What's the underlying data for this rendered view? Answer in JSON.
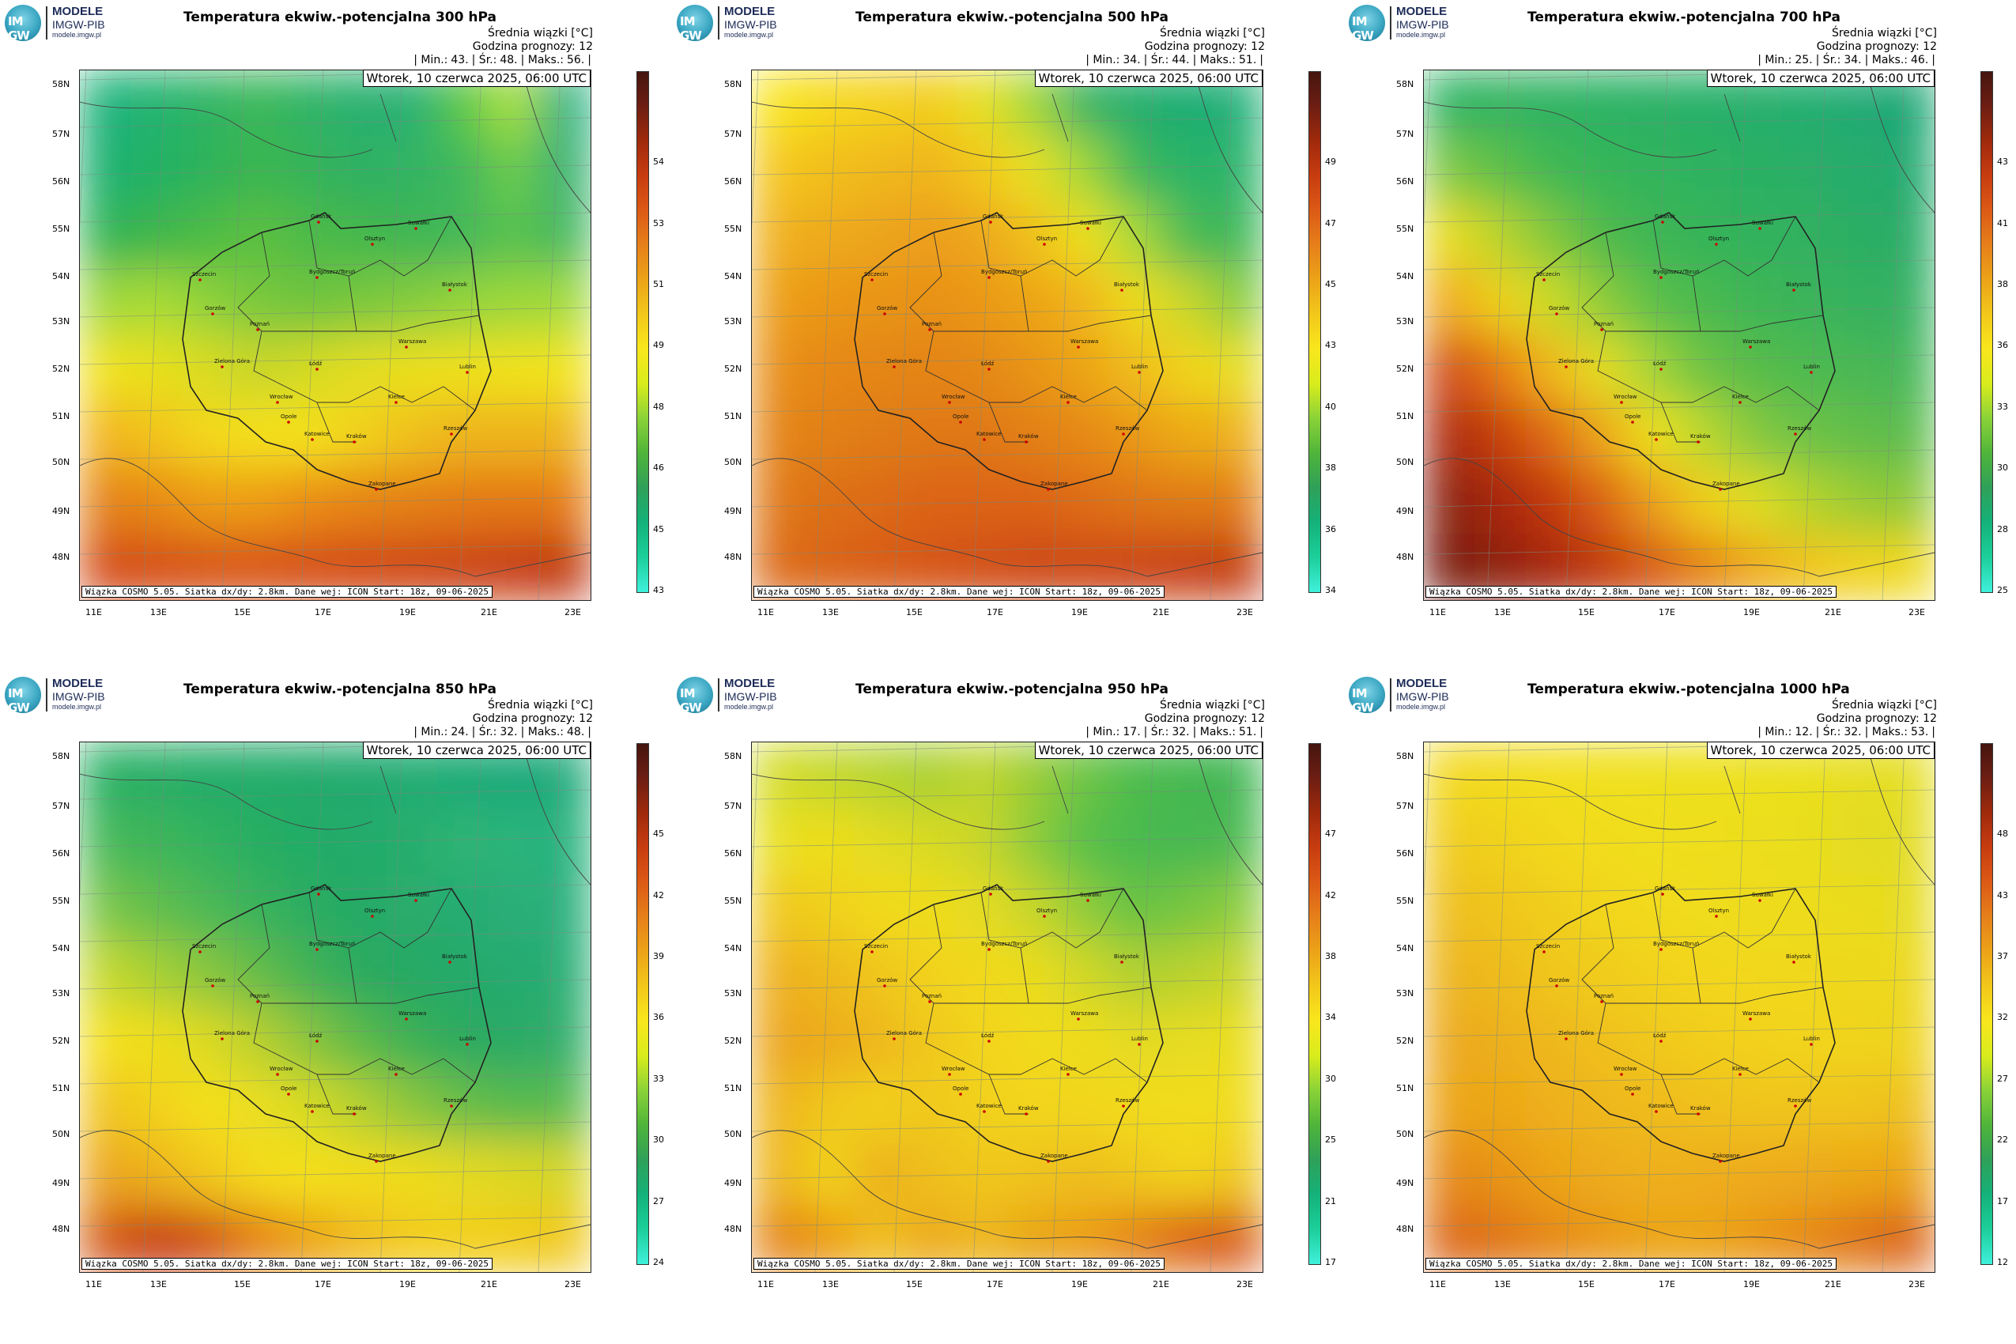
{
  "logo": {
    "mark": "IM GW",
    "line1": "MODELE",
    "line2": "IMGW-PIB",
    "line3": "modele.imgw.pl"
  },
  "common": {
    "subtitle": "Średnia wiązki [°C]",
    "forecast_hour": "Godzina prognozy: 12",
    "min_label": "| Min.:",
    "avg_label": "| Śr.:",
    "max_label": "| Maks.:",
    "date": "Wtorek, 10 czerwca 2025, 06:00 UTC",
    "footer": "Wiązka COSMO 5.05. Siatka dx/dy: 2.8km. Dane wej: ICON Start: 18z, 09-06-2025",
    "lat_labels": [
      "58N",
      "57N",
      "56N",
      "55N",
      "54N",
      "53N",
      "52N",
      "51N",
      "50N",
      "49N",
      "48N"
    ],
    "lon_labels": [
      "11E",
      "13E",
      "15E",
      "17E",
      "19E",
      "21E",
      "23E"
    ]
  },
  "colors": {
    "scale": [
      "#40f0dc",
      "#1ccf9a",
      "#14b27a",
      "#2fa05a",
      "#4fb43a",
      "#8ad238",
      "#d8ec1c",
      "#f8e71c",
      "#f2c81a",
      "#eca418",
      "#e6801a",
      "#dc5a16",
      "#c83c10",
      "#a02a0c",
      "#6e1e12",
      "#451510"
    ]
  },
  "panels": [
    {
      "title": "Temperatura ekwiw.-potencjalna 300 hPa",
      "min": "43.",
      "avg": "48.",
      "max": "56.",
      "cbar": [
        "43",
        "45",
        "46",
        "48",
        "49",
        "51",
        "53",
        "54"
      ],
      "field": [
        [
          "#1cb27c",
          "#24b470",
          "#2fb464",
          "#3ab858",
          "#2eb466",
          "#2bb070",
          "#27b074",
          "#5ac84a",
          "#a8e040",
          "#20b080"
        ],
        [
          "#1cb070",
          "#22b264",
          "#2eb25a",
          "#3ab650",
          "#35b45a",
          "#2fb062",
          "#33b464",
          "#40b85c",
          "#6ccc4c",
          "#34b070"
        ],
        [
          "#2fb454",
          "#3cb64c",
          "#4cbc44",
          "#5cc040",
          "#4cba48",
          "#44b84c",
          "#3cb652",
          "#44b85a",
          "#58c24e",
          "#44b860"
        ],
        [
          "#9ed83a",
          "#a8dc36",
          "#8ed23a",
          "#78c83e",
          "#6ec43e",
          "#78c83c",
          "#84cc3c",
          "#92d43a",
          "#9cd83a",
          "#a0da3a"
        ],
        [
          "#f0e21c",
          "#e8e01e",
          "#d8dc24",
          "#c8d62a",
          "#d4da24",
          "#e2de20",
          "#eadf1e",
          "#eee01c",
          "#f0e21c",
          "#f2e41c"
        ],
        [
          "#f2b41a",
          "#f2c41a",
          "#f4d81c",
          "#f4e01c",
          "#f4e01c",
          "#f2d01c",
          "#f0c01a",
          "#eeb41a",
          "#eeb41a",
          "#eeb41a"
        ],
        [
          "#e48018",
          "#e88a18",
          "#ec9c18",
          "#ee9c18",
          "#ea8c18",
          "#e68418",
          "#e48018",
          "#e47a18",
          "#e47818",
          "#e67c18"
        ],
        [
          "#d44c14",
          "#d65014",
          "#d85414",
          "#d85414",
          "#d65014",
          "#d44c14",
          "#d04a14",
          "#cc4412",
          "#c83c12",
          "#c03810"
        ]
      ]
    },
    {
      "title": "Temperatura ekwiw.-potencjalna 500 hPa",
      "min": "34.",
      "avg": "44.",
      "max": "51.",
      "cbar": [
        "34",
        "36",
        "38",
        "40",
        "43",
        "45",
        "47",
        "49"
      ],
      "field": [
        [
          "#f8e41c",
          "#f6d81c",
          "#f4d21c",
          "#f2cc1a",
          "#e8e020",
          "#9ed83a",
          "#34b464",
          "#22ae6c",
          "#1eac72",
          "#24b078"
        ],
        [
          "#f4c61a",
          "#f2be1a",
          "#f0b81a",
          "#f0b41a",
          "#f2c81a",
          "#e8e020",
          "#a0d838",
          "#3cb85a",
          "#2cb466",
          "#2cb46a"
        ],
        [
          "#f0b01a",
          "#eeaa1a",
          "#eca41a",
          "#ec9e1a",
          "#eea81a",
          "#f0c01a",
          "#eee01c",
          "#a8da38",
          "#48ba54",
          "#3cb858"
        ],
        [
          "#ec9e18",
          "#ea9618",
          "#e89418",
          "#e89018",
          "#ea9818",
          "#eca418",
          "#f0b41a",
          "#eedc1c",
          "#c8d82a",
          "#86cc3c"
        ],
        [
          "#e88e18",
          "#e68818",
          "#e48618",
          "#e48418",
          "#e48818",
          "#e89418",
          "#eca418",
          "#f0bc1a",
          "#f2d41a",
          "#e6de20"
        ],
        [
          "#e48418",
          "#e28018",
          "#e07c18",
          "#e07818",
          "#e07818",
          "#e28018",
          "#e68818",
          "#ea9818",
          "#ecaa18",
          "#eeb01a"
        ],
        [
          "#e07818",
          "#de7018",
          "#dc6a16",
          "#dc6416",
          "#dc6416",
          "#dc6416",
          "#de6c16",
          "#e07416",
          "#e07a18",
          "#e27c18"
        ],
        [
          "#dc6a16",
          "#da6416",
          "#d85c16",
          "#d65414",
          "#d25014",
          "#ce4a12",
          "#ce4812",
          "#cc4412",
          "#c84012",
          "#c23a10"
        ]
      ]
    },
    {
      "title": "Temperatura ekwiw.-potencjalna 700 hPa",
      "min": "25.",
      "avg": "34.",
      "max": "46.",
      "cbar": [
        "25",
        "28",
        "30",
        "33",
        "36",
        "38",
        "41",
        "43"
      ],
      "field": [
        [
          "#2cb462",
          "#30b460",
          "#2eb262",
          "#2cb264",
          "#2ab066",
          "#28b068",
          "#26ae6c",
          "#24ae70",
          "#20aa74",
          "#1ca676"
        ],
        [
          "#7cc842",
          "#5cc048",
          "#40b852",
          "#34b658",
          "#30b45c",
          "#2eb260",
          "#2cb064",
          "#2aae68",
          "#26ac6c",
          "#24aa70"
        ],
        [
          "#e8dc1e",
          "#b8d42e",
          "#80c83e",
          "#50ba4c",
          "#3cb654",
          "#36b458",
          "#32b25c",
          "#30b060",
          "#2cae64",
          "#2aac68"
        ],
        [
          "#f0a81a",
          "#eed21c",
          "#cadc26",
          "#8ccc3a",
          "#5ac04a",
          "#48ba50",
          "#3eb656",
          "#3ab45a",
          "#36b25e",
          "#34b062"
        ],
        [
          "#d24c14",
          "#e87c18",
          "#f0b81a",
          "#e4de20",
          "#a0d438",
          "#6cc244",
          "#56bc4a",
          "#4eba50",
          "#48b854",
          "#44b658"
        ],
        [
          "#ae2c0e",
          "#c8400e",
          "#e06c16",
          "#eca61a",
          "#eee01c",
          "#b8d82e",
          "#84c840",
          "#6cc246",
          "#62be4a",
          "#5cbc4e"
        ],
        [
          "#8a2010",
          "#a8280e",
          "#c4380e",
          "#dc6016",
          "#eca01a",
          "#f0d01c",
          "#dede22",
          "#b6d42c",
          "#98cc36",
          "#8cc838"
        ],
        [
          "#7a1c10",
          "#8e200e",
          "#a8280e",
          "#c23a10",
          "#d85c14",
          "#e68418",
          "#eeac1a",
          "#f0c41a",
          "#f0d21c",
          "#eed81c"
        ]
      ]
    },
    {
      "title": "Temperatura ekwiw.-potencjalna 850 hPa",
      "min": "24.",
      "avg": "32.",
      "max": "48.",
      "cbar": [
        "24",
        "27",
        "30",
        "33",
        "36",
        "39",
        "42",
        "45"
      ],
      "field": [
        [
          "#28b064",
          "#26ae66",
          "#24ac68",
          "#22ac6a",
          "#22aa6c",
          "#20aa70",
          "#22ac72",
          "#1eaa76",
          "#1ca87a",
          "#20aa7c"
        ],
        [
          "#44b858",
          "#3cb65a",
          "#30b25e",
          "#28ae62",
          "#24ac66",
          "#22aa6a",
          "#28ae6e",
          "#2eb474",
          "#2cb47a",
          "#28b27e"
        ],
        [
          "#78c64a",
          "#60be4e",
          "#4cb856",
          "#38b25c",
          "#2aac62",
          "#26aa66",
          "#2aac6c",
          "#28ac72",
          "#2aae78",
          "#2cb07c"
        ],
        [
          "#c4d82c",
          "#a6d034",
          "#88c63e",
          "#64bc4a",
          "#40b254",
          "#2aaa5e",
          "#26a864",
          "#28aa6a",
          "#28aa70",
          "#2cae74"
        ],
        [
          "#f4e01c",
          "#eede1e",
          "#dcda24",
          "#b8d02e",
          "#88c43c",
          "#5aba4a",
          "#3ab054",
          "#2aaa5e",
          "#2aaa66",
          "#30ae6a"
        ],
        [
          "#f0c41a",
          "#f2d21c",
          "#f4e01c",
          "#eade20",
          "#d6da24",
          "#b2d030",
          "#8ac63c",
          "#68be46",
          "#56ba4e",
          "#5cbc50"
        ],
        [
          "#eca41a",
          "#eeb41a",
          "#f2c81a",
          "#f4dc1c",
          "#f4e01c",
          "#f2dc1c",
          "#eedc1e",
          "#e4da22",
          "#dcd824",
          "#d4d626"
        ],
        [
          "#d45a16",
          "#c83c12",
          "#d25414",
          "#e68418",
          "#eca418",
          "#f0bc1a",
          "#f2cc1c",
          "#f2d01c",
          "#f2cc1c",
          "#f0c81a"
        ]
      ]
    },
    {
      "title": "Temperatura ekwiw.-potencjalna 950 hPa",
      "min": "17.",
      "avg": "32.",
      "max": "51.",
      "cbar": [
        "17",
        "21",
        "25",
        "30",
        "34",
        "38",
        "42",
        "47"
      ],
      "field": [
        [
          "#d4dc26",
          "#c4d82a",
          "#b6d42e",
          "#a8d032",
          "#c0d62c",
          "#98cc36",
          "#6cc444",
          "#4cbc4c",
          "#44b850",
          "#40b654"
        ],
        [
          "#e8e020",
          "#eede1e",
          "#e2dc22",
          "#d8da24",
          "#cad62a",
          "#8ccc3a",
          "#58c048",
          "#4aba4e",
          "#46b852",
          "#4cba50"
        ],
        [
          "#f0c81a",
          "#f0d01c",
          "#f2da1c",
          "#eedc1e",
          "#e4dc20",
          "#c8d62a",
          "#8ecc3a",
          "#66c244",
          "#76c640",
          "#8ccc3c"
        ],
        [
          "#eeb01a",
          "#eeba1a",
          "#f0c61a",
          "#f2d21c",
          "#f2d81c",
          "#eadc1e",
          "#d2d826",
          "#b0d030",
          "#b8d22e",
          "#c8d62a"
        ],
        [
          "#eca41a",
          "#ecac1a",
          "#eeb81a",
          "#f0c81a",
          "#f2d41c",
          "#f2da1c",
          "#eedc1e",
          "#e4da20",
          "#e6dc20",
          "#eade1e"
        ],
        [
          "#eeb41a",
          "#f0c81a",
          "#f2d01c",
          "#f0c81a",
          "#f2d21c",
          "#f2d41c",
          "#f2d61c",
          "#f2da1c",
          "#f2dc1c",
          "#f0dc1c"
        ],
        [
          "#eeb41a",
          "#f2d41c",
          "#ecb01a",
          "#eec01a",
          "#f0c61a",
          "#f0c41a",
          "#eebe1a",
          "#f0c81a",
          "#f2d41c",
          "#f0c81a"
        ],
        [
          "#e48418",
          "#ec9c18",
          "#f0c01a",
          "#eca81a",
          "#eeb81a",
          "#e8a418",
          "#ec9e18",
          "#e48418",
          "#dc6416",
          "#d85c14"
        ]
      ]
    },
    {
      "title": "Temperatura ekwiw.-potencjalna 1000 hPa",
      "min": "12.",
      "avg": "32.",
      "max": "53.",
      "cbar": [
        "12",
        "17",
        "22",
        "27",
        "32",
        "37",
        "43",
        "48"
      ],
      "field": [
        [
          "#f2d81c",
          "#f2dc1c",
          "#f2de1c",
          "#f0e01c",
          "#eee01e",
          "#eee01e",
          "#ece01e",
          "#eae01e",
          "#e6de20",
          "#e4de20"
        ],
        [
          "#f0cc1a",
          "#f0d21c",
          "#f2d81c",
          "#f2dc1c",
          "#f0de1c",
          "#eede1e",
          "#ecde1e",
          "#eade1e",
          "#e4dc20",
          "#e2dc20"
        ],
        [
          "#eebe1a",
          "#f0c61a",
          "#f0ce1a",
          "#f2d61c",
          "#f2da1c",
          "#f0dc1c",
          "#eedc1e",
          "#ecdc1e",
          "#eadc1e",
          "#e6dc20"
        ],
        [
          "#ecb41a",
          "#eebc1a",
          "#f0c61a",
          "#f0cc1a",
          "#f2d21c",
          "#f2d61c",
          "#f2d81c",
          "#f0d81c",
          "#eed81c",
          "#ecd81e"
        ],
        [
          "#eca81a",
          "#ecb01a",
          "#eeb81a",
          "#f0c01a",
          "#f0c81a",
          "#f2ce1c",
          "#f2d21c",
          "#f2d41c",
          "#f0d41c",
          "#eed41c"
        ],
        [
          "#eca418",
          "#eca818",
          "#eeb01a",
          "#eeb81a",
          "#f0bc1a",
          "#f0c01a",
          "#f0c41a",
          "#f0c41a",
          "#f0c41a",
          "#eec01a"
        ],
        [
          "#e68818",
          "#e89418",
          "#eca418",
          "#ecac1a",
          "#eeb01a",
          "#eeae1a",
          "#eeac1a",
          "#ecaa1a",
          "#eca818",
          "#eca418"
        ],
        [
          "#dc6816",
          "#e07418",
          "#e68818",
          "#ea9818",
          "#eca418",
          "#eca418",
          "#ea9818",
          "#e68818",
          "#e07418",
          "#da6416"
        ]
      ]
    }
  ],
  "cities": [
    "Gdańsk",
    "Olsztyn",
    "Suwałki",
    "Szczecin",
    "Bydgoszcz/Toruń",
    "Białystok",
    "Gorzów",
    "Poznań",
    "Warszawa",
    "Zielona Góra",
    "Łódź",
    "Lublin",
    "Wrocław",
    "Kielce",
    "Opole",
    "Katowice",
    "Kraków",
    "Rzeszów",
    "Zakopane"
  ]
}
